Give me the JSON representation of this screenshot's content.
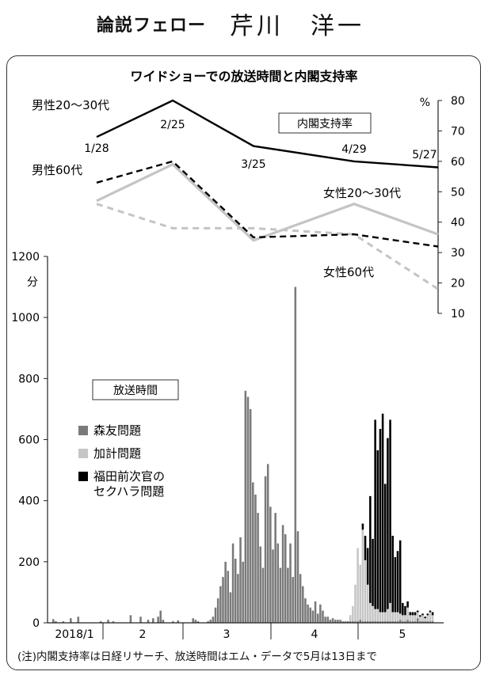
{
  "header": {
    "column": "論説フェロー",
    "author": "芹川　洋一"
  },
  "note": "(注)内閣支持率は日経リサーチ、放送時間はエム・データで5月は13日まで",
  "colors": {
    "morito": "#7a7a7a",
    "kake": "#c6c6c6",
    "fukuda": "#000000",
    "approval_line": "#000000",
    "male_60_line": "#000000",
    "female_line": "#c4c4c4",
    "female_60_line": "#c4c4c4"
  },
  "chart_data": {
    "title": "ワイドショーでの放送時間と内閣支持率",
    "approval": {
      "type": "line",
      "label": "内閣支持率",
      "y_axis_side": "right",
      "y_unit": "%",
      "ylim": [
        10,
        80
      ],
      "ticks": [
        10,
        20,
        30,
        40,
        50,
        60,
        70,
        80
      ],
      "x_labels": [
        "1/28",
        "2/25",
        "3/25",
        "4/29",
        "5/27"
      ],
      "series": [
        {
          "name": "男性20～30代",
          "values": [
            68,
            80,
            65,
            60,
            58
          ],
          "style": "solid-black"
        },
        {
          "name": "男性60代",
          "values": [
            53,
            60,
            35,
            36,
            32
          ],
          "style": "dashed-black"
        },
        {
          "name": "女性20～30代",
          "values": [
            47,
            59,
            34,
            46,
            36
          ],
          "style": "solid-gray"
        },
        {
          "name": "女性60代",
          "values": [
            46,
            38,
            38,
            36,
            18
          ],
          "style": "dashed-gray"
        }
      ]
    },
    "broadcast": {
      "type": "bar",
      "label": "放送時間",
      "y_unit": "分",
      "ylim": [
        0,
        1200
      ],
      "ticks": [
        0,
        200,
        400,
        600,
        800,
        1000,
        1200
      ],
      "x_labels": [
        "2018/1",
        "2",
        "3",
        "4",
        "5"
      ],
      "legend": [
        "森友問題",
        "加計問題",
        "福田前次官の\nセクハラ問題"
      ],
      "legend_colors": [
        "#7a7a7a",
        "#c6c6c6",
        "#000000"
      ],
      "series": [
        {
          "name": "森友問題",
          "values": [
            12,
            5,
            0,
            0,
            5,
            0,
            0,
            15,
            0,
            0,
            20,
            0,
            0,
            0,
            0,
            0,
            0,
            0,
            0,
            5,
            0,
            0,
            10,
            0,
            5,
            0,
            0,
            0,
            0,
            0,
            0,
            25,
            0,
            0,
            0,
            20,
            0,
            0,
            10,
            0,
            15,
            0,
            20,
            40,
            10,
            0,
            0,
            0,
            5,
            0,
            8,
            0,
            0,
            0,
            0,
            0,
            15,
            10,
            5,
            0,
            0,
            0,
            5,
            10,
            20,
            50,
            80,
            120,
            150,
            200,
            170,
            100,
            260,
            210,
            160,
            280,
            200,
            760,
            740,
            700,
            460,
            420,
            360,
            250,
            180,
            480,
            520,
            380,
            240,
            360,
            260,
            180,
            320,
            290,
            180,
            260,
            150,
            1100,
            300,
            160,
            120,
            80,
            60,
            50,
            40,
            70,
            30,
            60,
            40,
            20,
            20,
            10,
            15,
            10,
            10,
            10,
            5,
            5,
            5,
            5,
            5,
            5,
            5,
            10,
            5,
            5,
            5,
            5,
            5,
            5,
            5,
            5,
            5,
            5,
            5,
            5,
            5,
            5,
            5,
            10,
            5,
            5,
            10,
            5,
            5,
            5,
            15,
            5,
            5,
            5,
            5,
            5,
            5
          ]
        },
        {
          "name": "加計問題",
          "values": [
            0,
            0,
            0,
            0,
            0,
            0,
            0,
            0,
            0,
            0,
            0,
            0,
            0,
            0,
            0,
            0,
            0,
            0,
            0,
            0,
            0,
            0,
            0,
            0,
            0,
            0,
            0,
            0,
            0,
            0,
            0,
            0,
            0,
            0,
            0,
            0,
            0,
            0,
            0,
            0,
            0,
            0,
            0,
            0,
            0,
            0,
            0,
            0,
            0,
            0,
            0,
            0,
            0,
            0,
            0,
            0,
            0,
            0,
            0,
            0,
            0,
            0,
            0,
            0,
            0,
            0,
            0,
            0,
            0,
            0,
            0,
            0,
            0,
            0,
            0,
            0,
            0,
            0,
            0,
            0,
            0,
            0,
            0,
            0,
            0,
            0,
            0,
            0,
            0,
            0,
            0,
            0,
            0,
            0,
            0,
            0,
            0,
            0,
            0,
            0,
            0,
            0,
            0,
            0,
            0,
            0,
            0,
            0,
            0,
            0,
            0,
            0,
            0,
            0,
            0,
            0,
            0,
            0,
            0,
            20,
            50,
            120,
            240,
            180,
            300,
            200,
            120,
            60,
            50,
            40,
            40,
            30,
            30,
            30,
            40,
            60,
            30,
            30,
            30,
            20,
            20,
            20,
            40,
            20,
            20,
            20,
            20,
            15,
            20,
            10,
            20,
            30,
            20,
            80,
            200,
            150,
            40,
            20,
            10,
            10,
            10,
            10,
            10,
            5
          ]
        },
        {
          "name": "福田前次官のセクハラ問題",
          "values": [
            0,
            0,
            0,
            0,
            0,
            0,
            0,
            0,
            0,
            0,
            0,
            0,
            0,
            0,
            0,
            0,
            0,
            0,
            0,
            0,
            0,
            0,
            0,
            0,
            0,
            0,
            0,
            0,
            0,
            0,
            0,
            0,
            0,
            0,
            0,
            0,
            0,
            0,
            0,
            0,
            0,
            0,
            0,
            0,
            0,
            0,
            0,
            0,
            0,
            0,
            0,
            0,
            0,
            0,
            0,
            0,
            0,
            0,
            0,
            0,
            0,
            0,
            0,
            0,
            0,
            0,
            0,
            0,
            0,
            0,
            0,
            0,
            0,
            0,
            0,
            0,
            0,
            0,
            0,
            0,
            0,
            0,
            0,
            0,
            0,
            0,
            0,
            0,
            0,
            0,
            0,
            0,
            0,
            0,
            0,
            0,
            0,
            0,
            0,
            0,
            0,
            0,
            0,
            0,
            0,
            0,
            0,
            0,
            0,
            0,
            0,
            0,
            0,
            0,
            0,
            0,
            0,
            0,
            0,
            0,
            0,
            0,
            0,
            0,
            20,
            80,
            120,
            350,
            220,
            620,
            520,
            600,
            650,
            420,
            560,
            600,
            250,
            180,
            200,
            240,
            40,
            30,
            20,
            10,
            10,
            10,
            5,
            5,
            5,
            5,
            5,
            5,
            10,
            60,
            20,
            5,
            5,
            5,
            5,
            5,
            5,
            5,
            5,
            5
          ]
        }
      ]
    }
  }
}
